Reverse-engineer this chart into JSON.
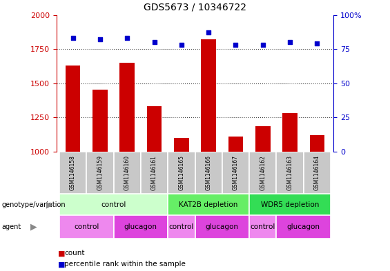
{
  "title": "GDS5673 / 10346722",
  "samples": [
    "GSM1146158",
    "GSM1146159",
    "GSM1146160",
    "GSM1146161",
    "GSM1146165",
    "GSM1146166",
    "GSM1146167",
    "GSM1146162",
    "GSM1146163",
    "GSM1146164"
  ],
  "counts": [
    1630,
    1455,
    1650,
    1335,
    1100,
    1820,
    1110,
    1185,
    1285,
    1120
  ],
  "percentiles": [
    83,
    82,
    83,
    80,
    78,
    87,
    78,
    78,
    80,
    79
  ],
  "ylim_left": [
    1000,
    2000
  ],
  "ylim_right": [
    0,
    100
  ],
  "yticks_left": [
    1000,
    1250,
    1500,
    1750,
    2000
  ],
  "yticks_right": [
    0,
    25,
    50,
    75,
    100
  ],
  "bar_color": "#cc0000",
  "dot_color": "#0000cc",
  "genotype_groups": [
    {
      "label": "control",
      "start": 0,
      "end": 4,
      "color": "#ccffcc"
    },
    {
      "label": "KAT2B depletion",
      "start": 4,
      "end": 7,
      "color": "#66ee66"
    },
    {
      "label": "WDR5 depletion",
      "start": 7,
      "end": 10,
      "color": "#33dd55"
    }
  ],
  "agent_groups": [
    {
      "label": "control",
      "start": 0,
      "end": 2,
      "color": "#ee88ee"
    },
    {
      "label": "glucagon",
      "start": 2,
      "end": 4,
      "color": "#dd44dd"
    },
    {
      "label": "control",
      "start": 4,
      "end": 5,
      "color": "#ee88ee"
    },
    {
      "label": "glucagon",
      "start": 5,
      "end": 7,
      "color": "#dd44dd"
    },
    {
      "label": "control",
      "start": 7,
      "end": 8,
      "color": "#ee88ee"
    },
    {
      "label": "glucagon",
      "start": 8,
      "end": 10,
      "color": "#dd44dd"
    }
  ],
  "row_label_genotype": "genotype/variation",
  "row_label_agent": "agent",
  "legend_count_label": "count",
  "legend_percentile_label": "percentile rank within the sample",
  "sample_bg_color": "#c8c8c8",
  "dotted_line_color": "#444444",
  "bar_width": 0.55
}
